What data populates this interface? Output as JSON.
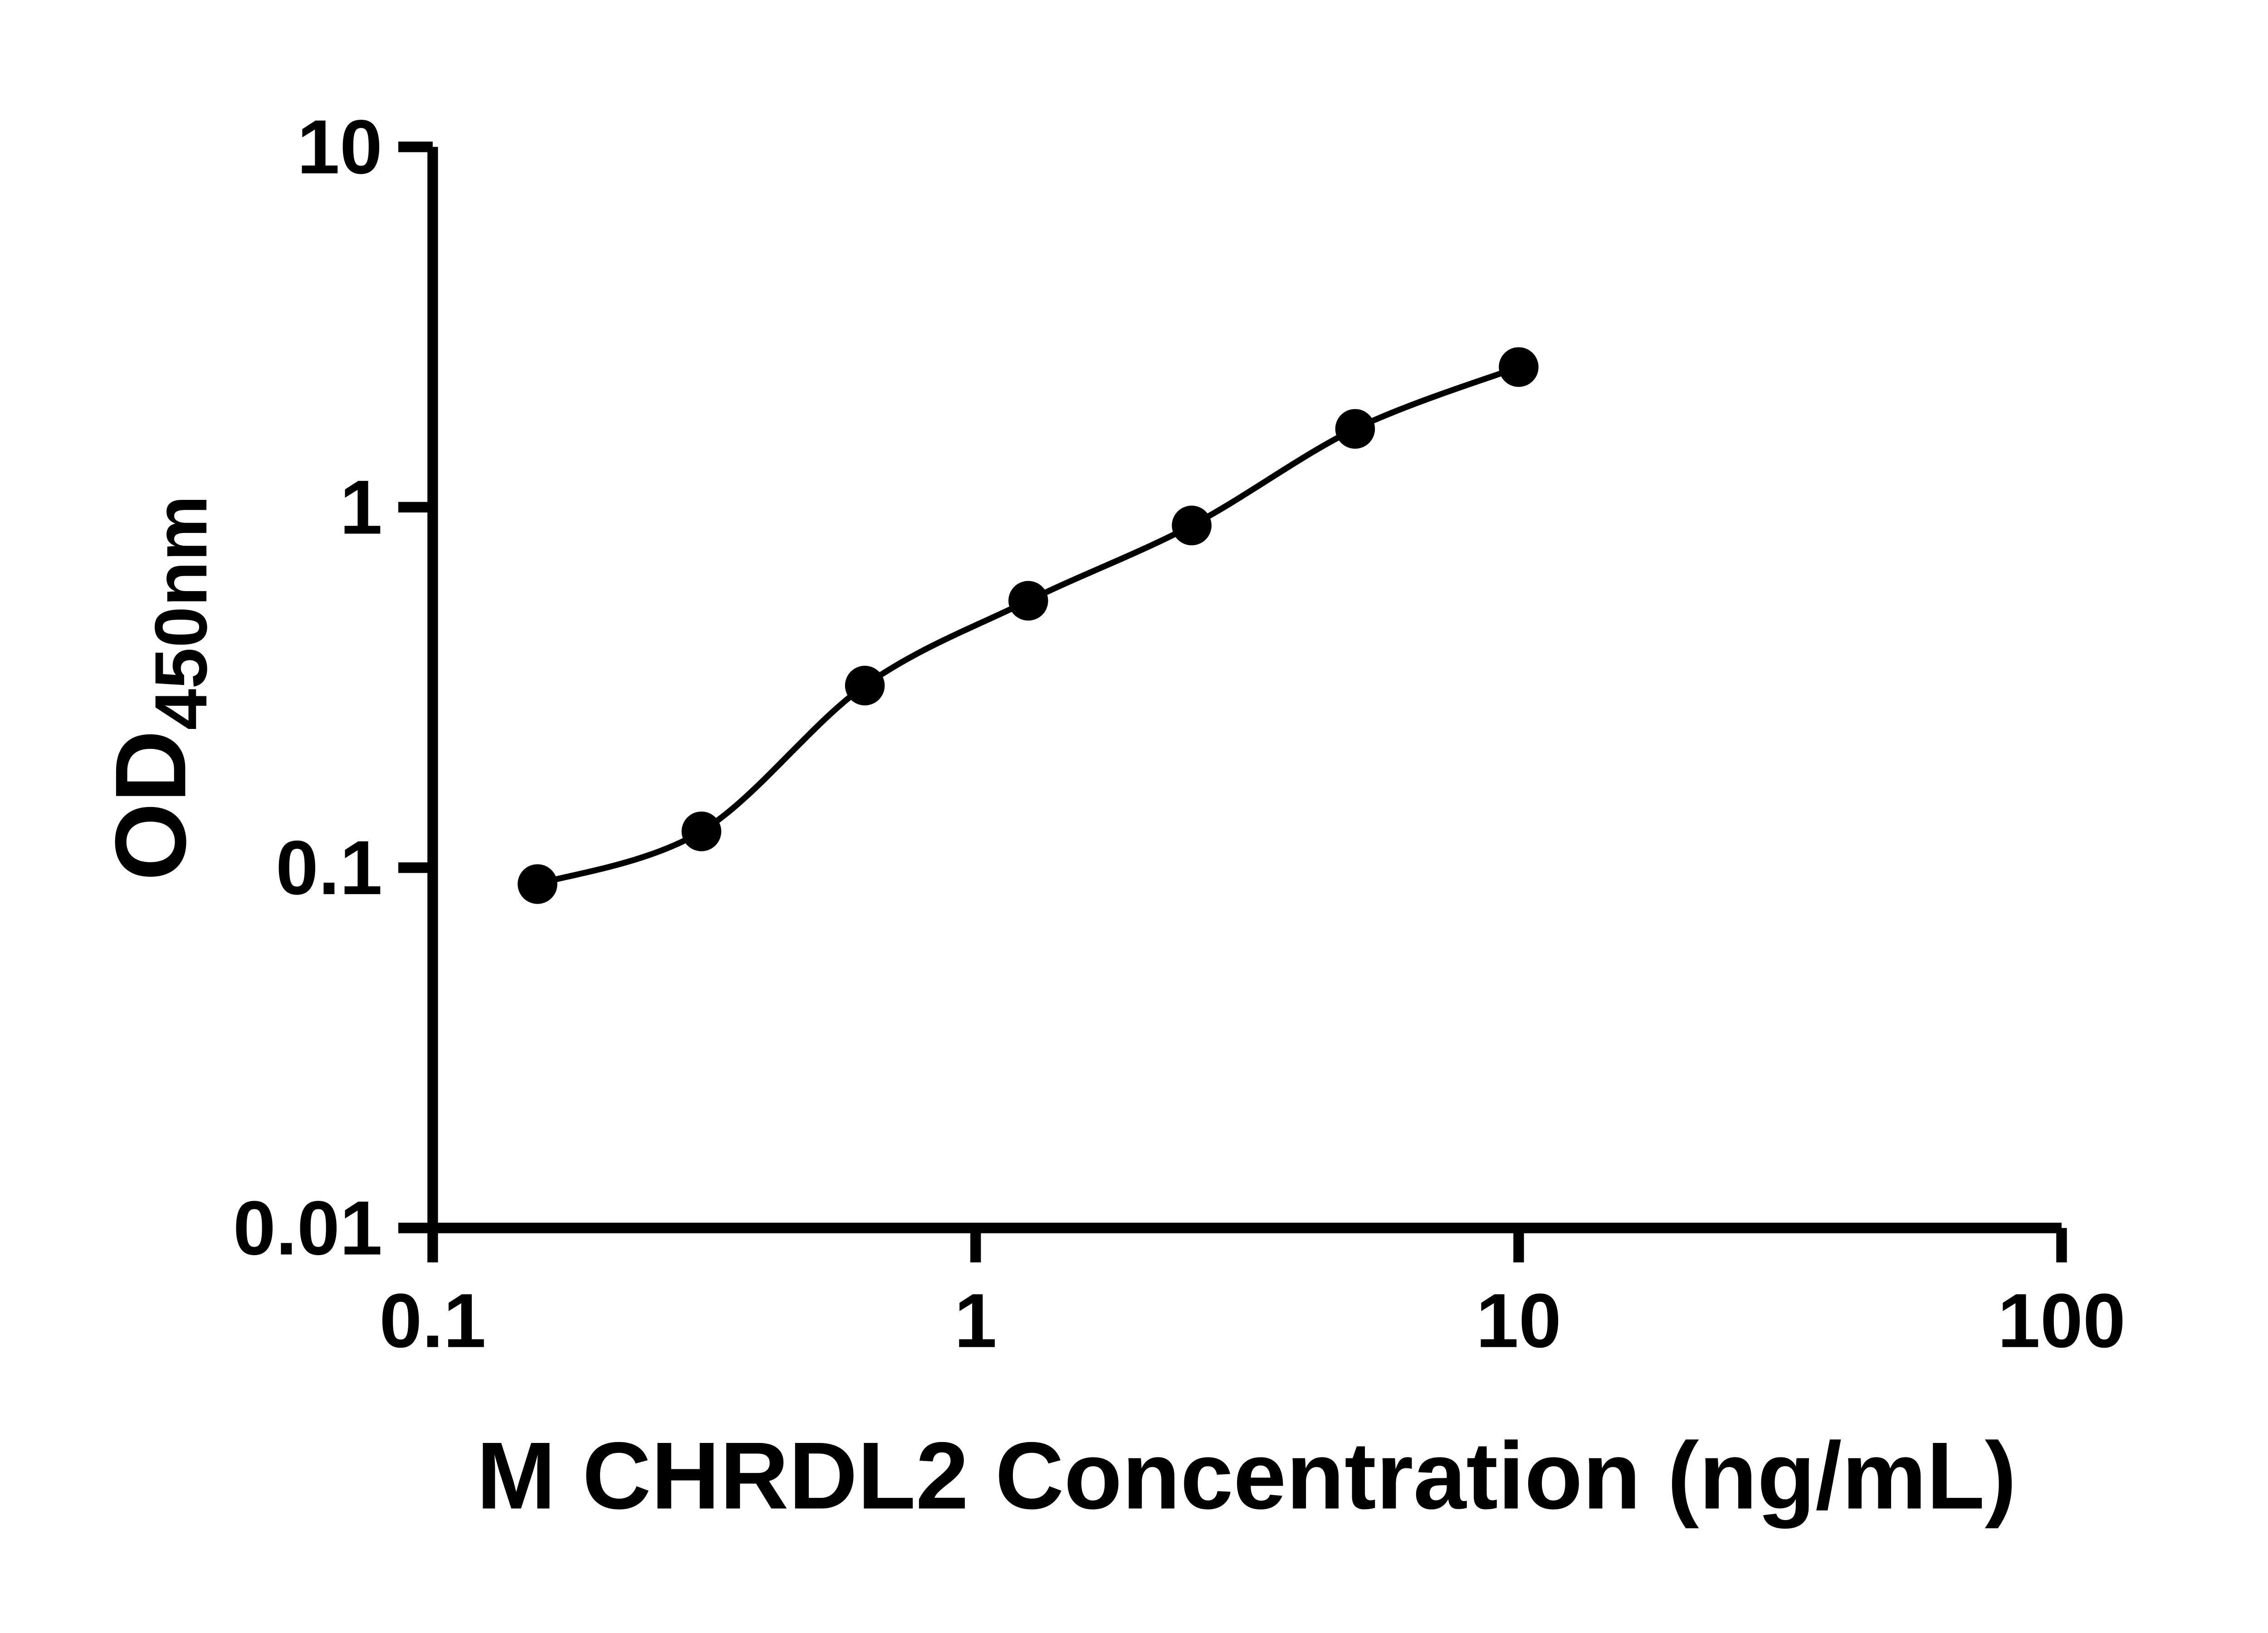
{
  "chart_data": {
    "type": "scatter",
    "title": "",
    "xlabel": "M CHRDL2 Concentration (ng/mL)",
    "ylabel": "OD450nm",
    "ylabel_base": "OD",
    "ylabel_sub": "450nm",
    "xscale": "log",
    "yscale": "log",
    "xlim": [
      0.1,
      100
    ],
    "ylim": [
      0.01,
      10
    ],
    "x_tick_values": [
      0.1,
      1,
      10,
      100
    ],
    "x_tick_labels": [
      "0.1",
      "1",
      "10",
      "100"
    ],
    "y_tick_values": [
      0.01,
      0.1,
      1,
      10
    ],
    "y_tick_labels": [
      "0.01",
      "0.1",
      "1",
      "10"
    ],
    "grid": false,
    "legend": false,
    "background_color": "#ffffff",
    "axis_color": "#000000",
    "series": [
      {
        "x": [
          0.156,
          0.3125,
          0.625,
          1.25,
          2.5,
          5,
          10
        ],
        "y": [
          0.09,
          0.126,
          0.32,
          0.55,
          0.89,
          1.65,
          2.45
        ],
        "marker": "circle",
        "marker_color": "#000000",
        "line": "smooth-fit",
        "line_color": "#000000"
      }
    ]
  }
}
